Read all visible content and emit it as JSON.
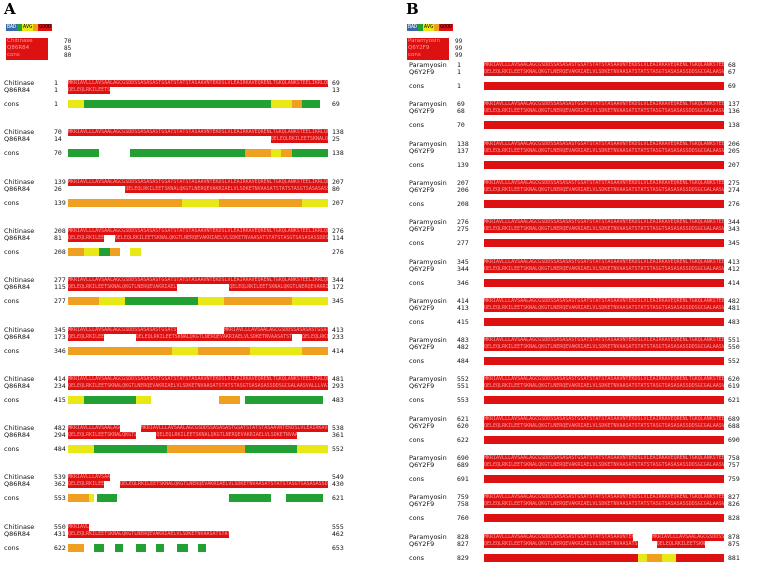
{
  "legend_labels": [
    "BAD",
    "AVG",
    "GOOD"
  ],
  "colors": {
    "bad": "#3c6aa6",
    "avg_green": "#22a033",
    "avg_yellow": "#e8e817",
    "avg_orange": "#f0a020",
    "good": "#dd1111",
    "gap": "#ffffff"
  },
  "panels": [
    {
      "id": "A",
      "letter": "A",
      "score_labels": [
        "Chitinase",
        "Q86R84",
        "cons"
      ],
      "score_values": [
        "70",
        "85",
        "80"
      ],
      "seq1_name": "Chitinase",
      "seq2_name": "Q86R84",
      "cons_name": "cons",
      "blocks": [
        {
          "s1": "1",
          "e1": "69",
          "s2": "1",
          "e2": "13",
          "c1": "1",
          "c2": "69"
        },
        {
          "s1": "70",
          "e1": "138",
          "s2": "14",
          "e2": "25",
          "c1": "70",
          "c2": "138"
        },
        {
          "s1": "139",
          "e1": "207",
          "s2": "26",
          "e2": "80",
          "c1": "139",
          "c2": "207"
        },
        {
          "s1": "208",
          "e1": "276",
          "s2": "81",
          "e2": "114",
          "c1": "208",
          "c2": "276"
        },
        {
          "s1": "277",
          "e1": "344",
          "s2": "115",
          "e2": "172",
          "c1": "277",
          "c2": "345"
        },
        {
          "s1": "345",
          "e1": "413",
          "s2": "173",
          "e2": "233",
          "c1": "346",
          "c2": "414"
        },
        {
          "s1": "414",
          "e1": "481",
          "s2": "234",
          "e2": "293",
          "c1": "415",
          "c2": "483"
        },
        {
          "s1": "482",
          "e1": "538",
          "s2": "294",
          "e2": "361",
          "c1": "484",
          "c2": "552"
        },
        {
          "s1": "539",
          "e1": "549",
          "s2": "362",
          "e2": "430",
          "c1": "553",
          "c2": "621"
        },
        {
          "s1": "550",
          "e1": "555",
          "s2": "431",
          "e2": "462",
          "c1": "622",
          "c2": "653"
        }
      ]
    },
    {
      "id": "B",
      "letter": "B",
      "score_labels": [
        "Paramyosin",
        "Q6Y2F9",
        "cons"
      ],
      "score_values": [
        "99",
        "99",
        "99"
      ],
      "seq1_name": "Paramyosin",
      "seq2_name": "Q6Y2F9",
      "cons_name": "cons",
      "blocks": [
        {
          "s1": "1",
          "e1": "68",
          "s2": "1",
          "e2": "67",
          "c1": "1",
          "c2": "69"
        },
        {
          "s1": "69",
          "e1": "137",
          "s2": "68",
          "e2": "136",
          "c1": "70",
          "c2": "138"
        },
        {
          "s1": "138",
          "e1": "206",
          "s2": "137",
          "e2": "205",
          "c1": "139",
          "c2": "207"
        },
        {
          "s1": "207",
          "e1": "275",
          "s2": "206",
          "e2": "274",
          "c1": "208",
          "c2": "276"
        },
        {
          "s1": "276",
          "e1": "344",
          "s2": "275",
          "e2": "343",
          "c1": "277",
          "c2": "345"
        },
        {
          "s1": "345",
          "e1": "413",
          "s2": "344",
          "e2": "412",
          "c1": "346",
          "c2": "414"
        },
        {
          "s1": "414",
          "e1": "482",
          "s2": "413",
          "e2": "481",
          "c1": "415",
          "c2": "483"
        },
        {
          "s1": "483",
          "e1": "551",
          "s2": "482",
          "e2": "550",
          "c1": "484",
          "c2": "552"
        },
        {
          "s1": "552",
          "e1": "620",
          "s2": "551",
          "e2": "619",
          "c1": "553",
          "c2": "621"
        },
        {
          "s1": "621",
          "e1": "689",
          "s2": "620",
          "e2": "688",
          "c1": "622",
          "c2": "690"
        },
        {
          "s1": "690",
          "e1": "758",
          "s2": "689",
          "e2": "757",
          "c1": "691",
          "c2": "759"
        },
        {
          "s1": "759",
          "e1": "827",
          "s2": "758",
          "e2": "826",
          "c1": "760",
          "c2": "828"
        },
        {
          "s1": "828",
          "e1": "878",
          "s2": "827",
          "e2": "875",
          "c1": "829",
          "c2": "881"
        }
      ]
    }
  ]
}
